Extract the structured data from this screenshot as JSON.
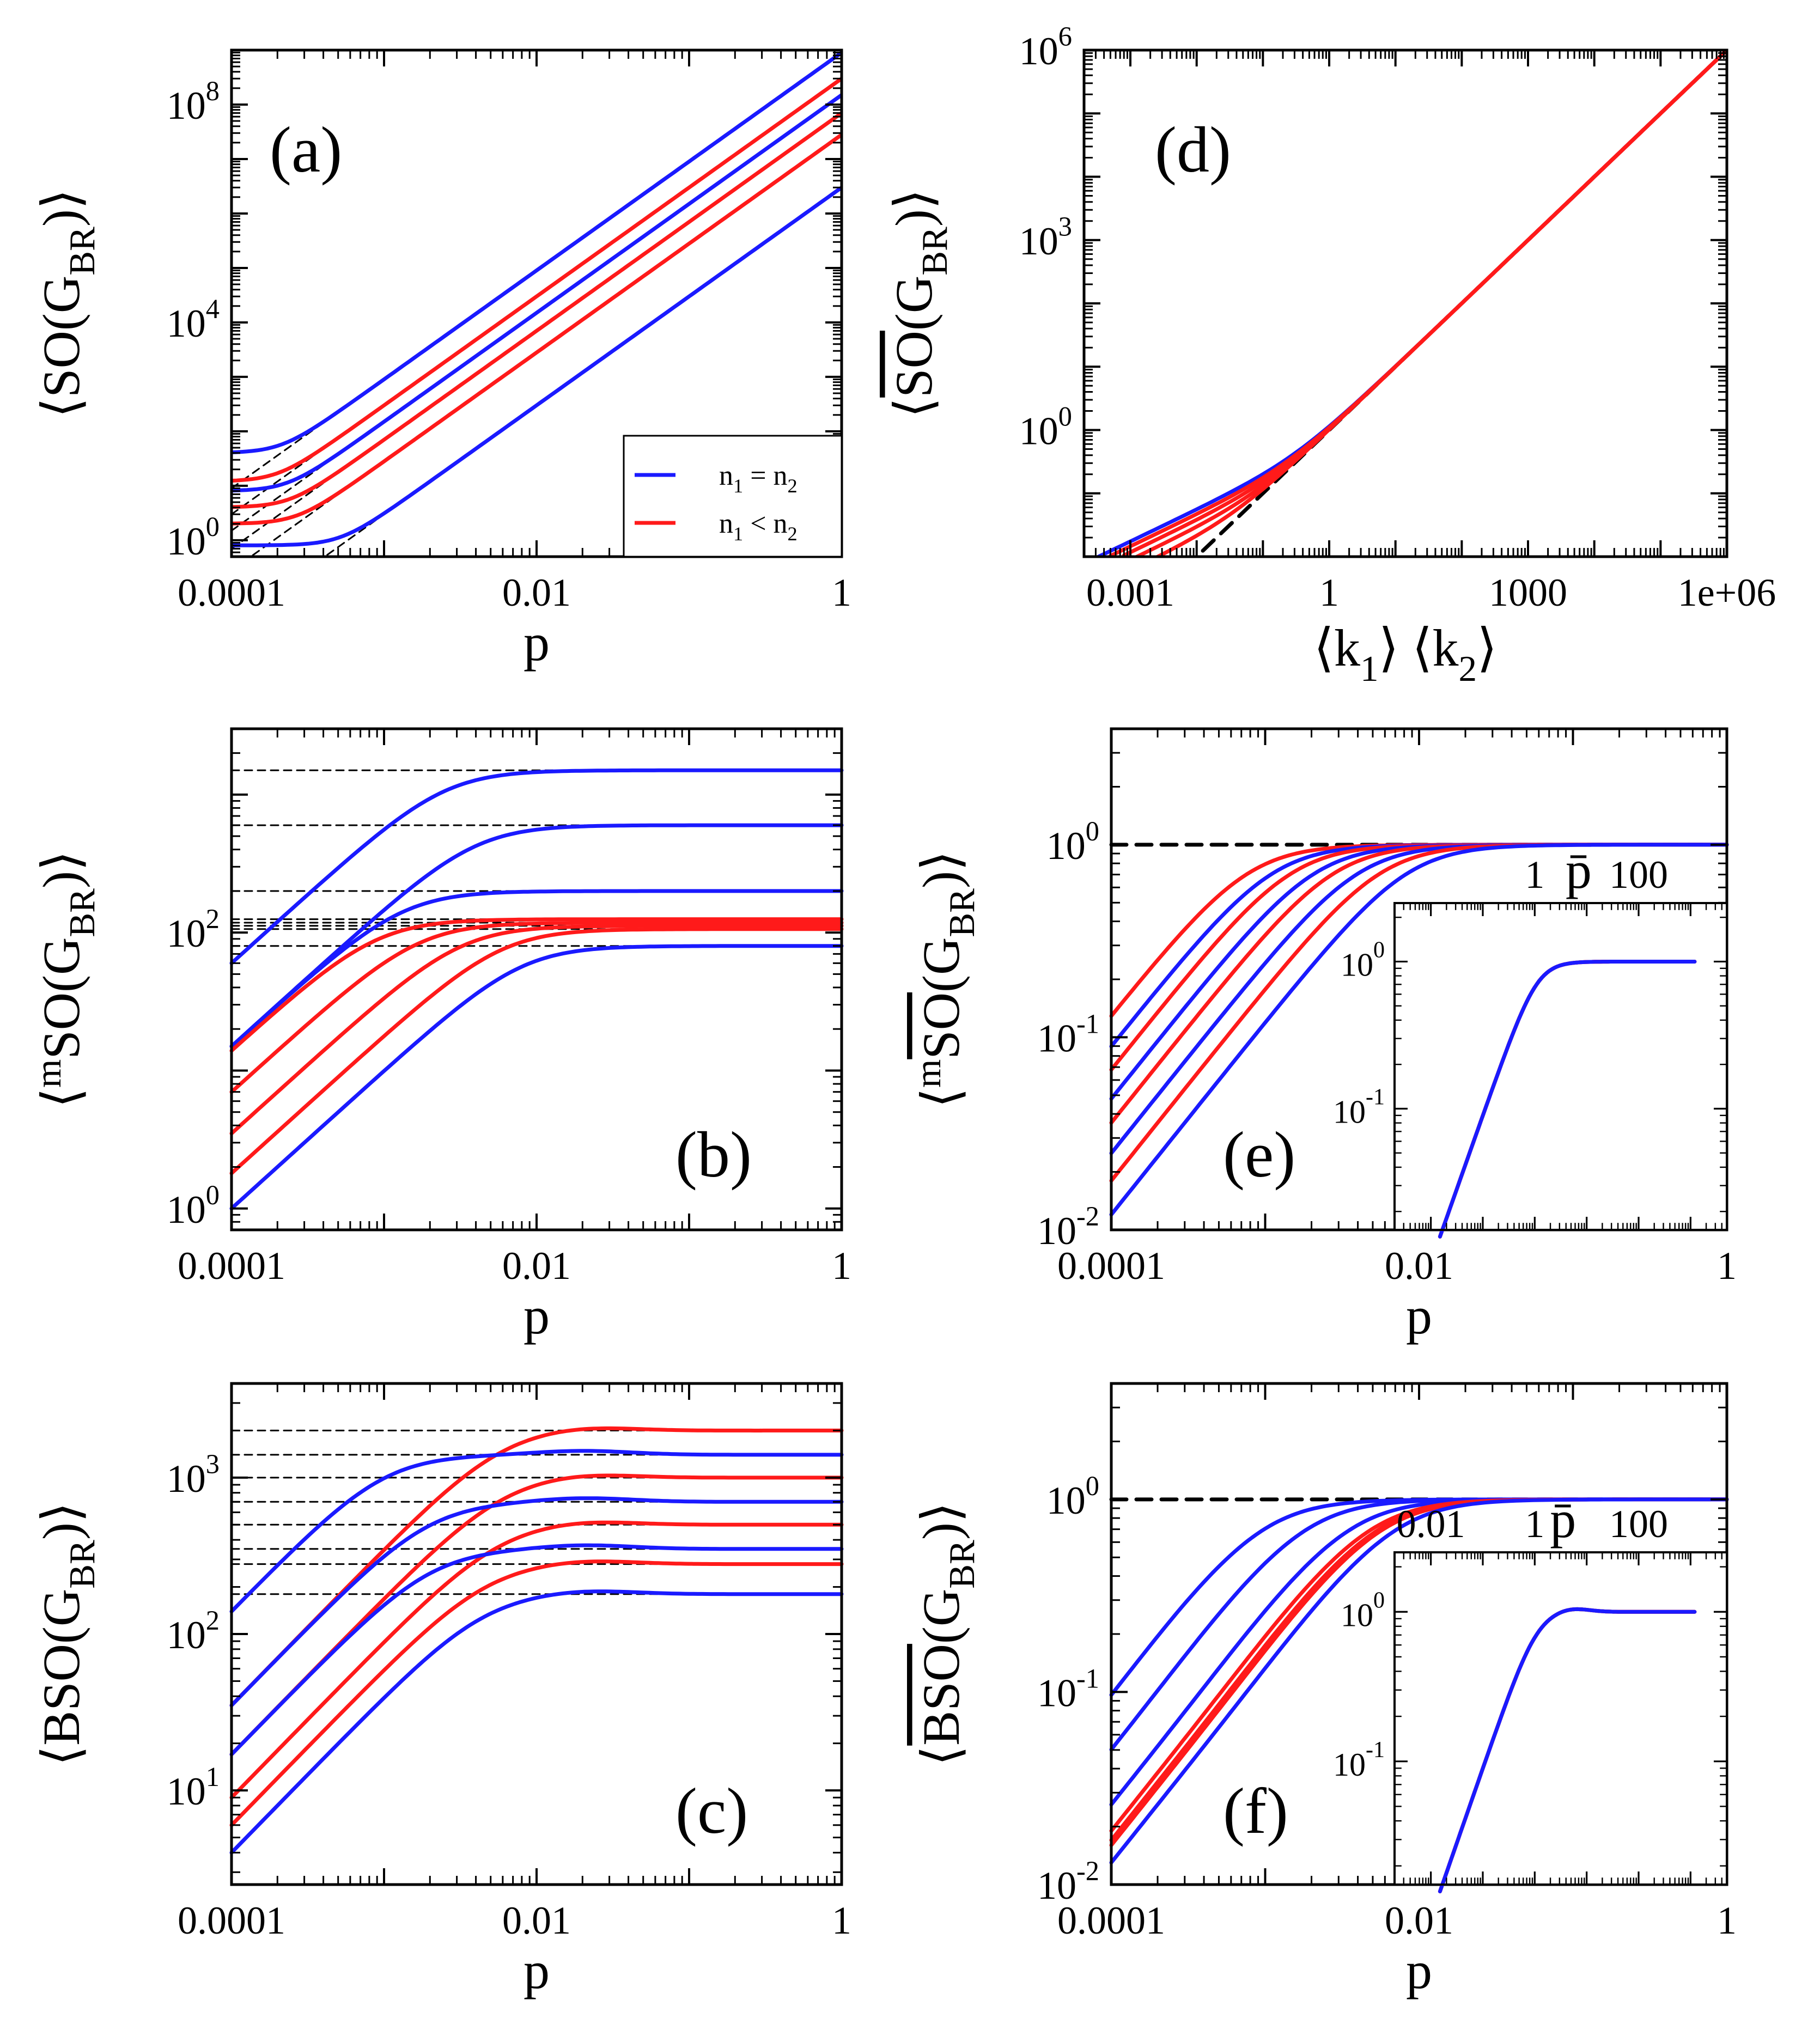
{
  "colors": {
    "blue": "#1a1aff",
    "red": "#ff1a1a",
    "black": "#000000"
  },
  "legend": {
    "blue_label": "n1 = n2",
    "red_label": "n1 < n2"
  },
  "chart_data": [
    {
      "id": "a",
      "type": "line",
      "panel_label": "(a)",
      "xlabel": "p",
      "ylabel": "⟨SO(G_BR)⟩",
      "xscale": "log",
      "yscale": "log",
      "xlim": [
        0.0001,
        1
      ],
      "ylim": [
        0.5,
        1000000000.0
      ],
      "xticks": [
        {
          "v": 0.0001,
          "t": "0.0001"
        },
        {
          "v": 0.01,
          "t": "0.01"
        },
        {
          "v": 1,
          "t": "1"
        }
      ],
      "yticks": [
        {
          "v": 1,
          "t": "10^0"
        },
        {
          "v": 10000,
          "t": "10^4"
        },
        {
          "v": 100000000,
          "t": "10^8"
        }
      ],
      "dashed_fit": "power-law p^2 asymptotes",
      "series": [
        {
          "name": "n1 = n2",
          "color": "blue",
          "start": 40,
          "end": 900000000
        },
        {
          "name": "n1 < n2",
          "color": "red",
          "start": 12,
          "end": 300000000
        },
        {
          "name": "n1 = n2",
          "color": "blue",
          "start": 8,
          "end": 150000000
        },
        {
          "name": "n1 < n2",
          "color": "red",
          "start": 4,
          "end": 70000000
        },
        {
          "name": "n1 < n2",
          "color": "red",
          "start": 2,
          "end": 28000000
        },
        {
          "name": "n1 = n2",
          "color": "blue",
          "start": 0.8,
          "end": 3000000
        }
      ],
      "legend_position": "bottom-right"
    },
    {
      "id": "b",
      "type": "line",
      "panel_label": "(b)",
      "xlabel": "p",
      "ylabel": "⟨mSO(G_BR)⟩",
      "xscale": "log",
      "yscale": "log",
      "xlim": [
        0.0001,
        1
      ],
      "ylim": [
        0.7,
        3000
      ],
      "xticks": [
        {
          "v": 0.0001,
          "t": "0.0001"
        },
        {
          "v": 0.01,
          "t": "0.01"
        },
        {
          "v": 1,
          "t": "1"
        }
      ],
      "yticks": [
        {
          "v": 1,
          "t": "10^0"
        },
        {
          "v": 100,
          "t": "10^2"
        }
      ],
      "series": [
        {
          "color": "blue",
          "start": 60,
          "plateau": 1500
        },
        {
          "color": "blue",
          "start": 15,
          "plateau": 600
        },
        {
          "color": "blue",
          "start": 15,
          "plateau": 200
        },
        {
          "color": "red",
          "start": 14,
          "plateau": 125
        },
        {
          "color": "red",
          "start": 7,
          "plateau": 118
        },
        {
          "color": "red",
          "start": 3.5,
          "plateau": 112
        },
        {
          "color": "red",
          "start": 1.8,
          "plateau": 106
        },
        {
          "color": "blue",
          "start": 1.0,
          "plateau": 80
        }
      ]
    },
    {
      "id": "c",
      "type": "line",
      "panel_label": "(c)",
      "xlabel": "p",
      "ylabel": "⟨BSO(G_BR)⟩",
      "xscale": "log",
      "yscale": "log",
      "xlim": [
        0.0001,
        1
      ],
      "ylim": [
        2.5,
        4000
      ],
      "xticks": [
        {
          "v": 0.0001,
          "t": "0.0001"
        },
        {
          "v": 0.01,
          "t": "0.01"
        },
        {
          "v": 1,
          "t": "1"
        }
      ],
      "yticks": [
        {
          "v": 10,
          "t": "10^1"
        },
        {
          "v": 100,
          "t": "10^2"
        },
        {
          "v": 1000,
          "t": "10^3"
        }
      ],
      "series": [
        {
          "color": "red",
          "start": 35,
          "plateau": 2000
        },
        {
          "color": "blue",
          "start": 140,
          "plateau": 1400
        },
        {
          "color": "red",
          "start": 17,
          "plateau": 1000
        },
        {
          "color": "blue",
          "start": 35,
          "plateau": 700
        },
        {
          "color": "red",
          "start": 9,
          "plateau": 500
        },
        {
          "color": "blue",
          "start": 17,
          "plateau": 350
        },
        {
          "color": "red",
          "start": 6,
          "plateau": 280
        },
        {
          "color": "blue",
          "start": 4,
          "plateau": 180
        }
      ]
    },
    {
      "id": "d",
      "type": "line",
      "panel_label": "(d)",
      "xlabel": "⟨k1⟩ ⟨k2⟩",
      "ylabel": "⟨SO(G_BR) normalized⟩",
      "xscale": "log",
      "yscale": "log",
      "xlim": [
        0.0002,
        1000000
      ],
      "ylim": [
        0.01,
        1000000
      ],
      "xticks": [
        {
          "v": 0.001,
          "t": "0.001"
        },
        {
          "v": 1,
          "t": "1"
        },
        {
          "v": 1000,
          "t": "1000"
        },
        {
          "v": 1000000,
          "t": "1e+06"
        }
      ],
      "yticks": [
        {
          "v": 1,
          "t": "10^0"
        },
        {
          "v": 1000,
          "t": "10^3"
        },
        {
          "v": 1000000,
          "t": "10^6"
        }
      ],
      "series": [
        {
          "color": "blue",
          "xstart": 0.00025
        },
        {
          "color": "red",
          "xstart": 0.0005
        },
        {
          "color": "red",
          "xstart": 0.0008
        },
        {
          "color": "red",
          "xstart": 0.0012
        },
        {
          "color": "red",
          "xstart": 0.0018
        }
      ],
      "reference": "y = x (black dashed)"
    },
    {
      "id": "e",
      "type": "line",
      "panel_label": "(e)",
      "xlabel": "p",
      "ylabel": "⟨mSO normalized (G_BR)⟩",
      "xscale": "log",
      "yscale": "log",
      "xlim": [
        0.0001,
        1
      ],
      "ylim": [
        0.01,
        4
      ],
      "xticks": [
        {
          "v": 0.0001,
          "t": "0.0001"
        },
        {
          "v": 0.01,
          "t": "0.01"
        },
        {
          "v": 1,
          "t": "1"
        }
      ],
      "yticks": [
        {
          "v": 0.01,
          "t": "10^-2"
        },
        {
          "v": 0.1,
          "t": "10^-1"
        },
        {
          "v": 1,
          "t": "10^0"
        }
      ],
      "series": [
        {
          "color": "red",
          "start": 0.13
        },
        {
          "color": "blue",
          "start": 0.09
        },
        {
          "color": "red",
          "start": 0.068
        },
        {
          "color": "blue",
          "start": 0.048
        },
        {
          "color": "red",
          "start": 0.036
        },
        {
          "color": "blue",
          "start": 0.025
        },
        {
          "color": "red",
          "start": 0.018
        },
        {
          "color": "blue",
          "start": 0.012
        }
      ],
      "inset": {
        "xlabel": "p̄",
        "xscale": "log",
        "yscale": "log",
        "xticks": [
          {
            "v": 1,
            "t": "1"
          },
          {
            "v": 100,
            "t": "100"
          }
        ],
        "yticks": [
          {
            "v": 0.1,
            "t": "10^-1"
          },
          {
            "v": 1,
            "t": "10^0"
          }
        ]
      }
    },
    {
      "id": "f",
      "type": "line",
      "panel_label": "(f)",
      "xlabel": "p",
      "ylabel": "⟨BSO normalized (G_BR)⟩",
      "xscale": "log",
      "yscale": "log",
      "xlim": [
        0.0001,
        1
      ],
      "ylim": [
        0.01,
        4
      ],
      "xticks": [
        {
          "v": 0.0001,
          "t": "0.0001"
        },
        {
          "v": 0.01,
          "t": "0.01"
        },
        {
          "v": 1,
          "t": "1"
        }
      ],
      "yticks": [
        {
          "v": 0.01,
          "t": "10^-2"
        },
        {
          "v": 0.1,
          "t": "10^-1"
        },
        {
          "v": 1,
          "t": "10^0"
        }
      ],
      "series": [
        {
          "color": "blue",
          "start": 0.095
        },
        {
          "color": "blue",
          "start": 0.05
        },
        {
          "color": "blue",
          "start": 0.026
        },
        {
          "color": "red",
          "start": 0.019
        },
        {
          "color": "red",
          "start": 0.017
        },
        {
          "color": "red",
          "start": 0.016
        },
        {
          "color": "blue",
          "start": 0.013
        }
      ],
      "inset": {
        "xlabel": "p̄",
        "xscale": "log",
        "yscale": "log",
        "xticks": [
          {
            "v": 0.01,
            "t": "0.01"
          },
          {
            "v": 1,
            "t": "1"
          },
          {
            "v": 100,
            "t": "100"
          }
        ],
        "yticks": [
          {
            "v": 0.1,
            "t": "10^-1"
          },
          {
            "v": 1,
            "t": "10^0"
          }
        ]
      }
    }
  ]
}
